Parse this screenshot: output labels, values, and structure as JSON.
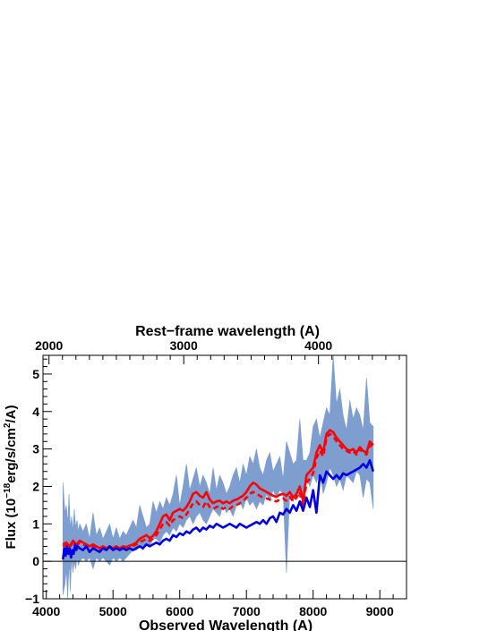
{
  "chart_data": {
    "type": "line",
    "xlabel": "Observed Wavelength (A)",
    "x2label": "Rest−frame wavelength (A)",
    "ylabel_parts": [
      "Flux (10",
      "−18",
      "erg/s/cm",
      "2",
      "/A)"
    ],
    "xlim": [
      3950,
      9400
    ],
    "ylim": [
      -1,
      5.5
    ],
    "x_ticks": [
      4000,
      5000,
      6000,
      7000,
      8000,
      9000
    ],
    "x_tick_labels": [
      "4000",
      "5000",
      "6000",
      "7000",
      "8000",
      "9000"
    ],
    "x2_ticks_rest": [
      2000,
      3000,
      4000
    ],
    "x2_tick_labels": [
      "2000",
      "3000",
      "4000"
    ],
    "x2_observed_per_rest": 2.02,
    "y_ticks": [
      -1,
      0,
      1,
      2,
      3,
      4,
      5
    ],
    "y_tick_labels": [
      "−1",
      "0",
      "1",
      "2",
      "3",
      "4",
      "5"
    ],
    "zero_line": 0,
    "grid": false,
    "legend": "none",
    "colors": {
      "observed": "#7f9ed0",
      "model_red": "#ff0000",
      "model_blue": "#0000e0",
      "axes": "#000000"
    },
    "series": [
      {
        "style": "fill",
        "color": "#7f9ed0",
        "x": [
          4250,
          4280,
          4300,
          4320,
          4340,
          4360,
          4380,
          4400,
          4420,
          4440,
          4460,
          4480,
          4500,
          4550,
          4600,
          4650,
          4700,
          4750,
          4800,
          4850,
          4900,
          4950,
          5000,
          5050,
          5100,
          5150,
          5200,
          5250,
          5300,
          5350,
          5400,
          5450,
          5500,
          5550,
          5600,
          5650,
          5700,
          5750,
          5800,
          5850,
          5900,
          5950,
          6000,
          6050,
          6100,
          6150,
          6200,
          6250,
          6300,
          6350,
          6400,
          6450,
          6500,
          6550,
          6600,
          6650,
          6700,
          6750,
          6800,
          6850,
          6900,
          6950,
          7000,
          7050,
          7100,
          7150,
          7200,
          7250,
          7300,
          7350,
          7400,
          7450,
          7500,
          7550,
          7600,
          7650,
          7700,
          7750,
          7800,
          7850,
          7900,
          7950,
          8000,
          8050,
          8100,
          8150,
          8200,
          8250,
          8300,
          8350,
          8400,
          8450,
          8500,
          8550,
          8600,
          8650,
          8700,
          8750,
          8800,
          8850,
          8900
        ],
        "upper": [
          2.1,
          1.3,
          1.5,
          1.0,
          1.8,
          0.9,
          1.2,
          0.8,
          1.4,
          0.9,
          1.1,
          0.8,
          1.0,
          0.8,
          1.0,
          0.6,
          1.3,
          0.7,
          0.9,
          0.6,
          0.8,
          1.0,
          0.6,
          0.9,
          0.6,
          0.8,
          0.7,
          0.9,
          1.1,
          0.9,
          1.5,
          1.2,
          0.9,
          1.0,
          1.6,
          1.3,
          1.6,
          1.4,
          1.7,
          1.5,
          1.8,
          2.3,
          1.5,
          2.0,
          2.6,
          1.9,
          2.2,
          2.5,
          2.0,
          2.3,
          2.1,
          1.8,
          2.5,
          1.9,
          2.3,
          2.1,
          1.8,
          2.0,
          2.3,
          2.5,
          2.1,
          2.6,
          2.3,
          2.8,
          2.6,
          3.0,
          2.5,
          2.3,
          2.7,
          2.9,
          2.4,
          2.6,
          2.8,
          2.2,
          3.2,
          2.9,
          2.6,
          2.7,
          3.8,
          2.7,
          2.7,
          2.9,
          3.6,
          3.8,
          3.3,
          3.7,
          4.1,
          3.9,
          5.5,
          4.2,
          4.6,
          3.9,
          3.5,
          4.3,
          3.8,
          4.1,
          3.9,
          3.5,
          4.9,
          3.7,
          3.6
        ],
        "lower": [
          -0.9,
          -0.6,
          -0.2,
          -1.0,
          0.0,
          -0.8,
          0.1,
          -0.3,
          0.0,
          -0.2,
          0.1,
          -0.1,
          0.0,
          0.1,
          0.0,
          0.1,
          -0.2,
          0.1,
          0.0,
          0.1,
          0.0,
          -0.1,
          0.1,
          0.0,
          0.1,
          0.0,
          0.1,
          0.2,
          0.3,
          0.3,
          0.4,
          0.3,
          0.5,
          0.4,
          0.6,
          0.6,
          0.5,
          0.7,
          0.8,
          0.7,
          0.9,
          0.8,
          1.0,
          0.9,
          1.1,
          1.2,
          1.0,
          1.2,
          1.3,
          1.1,
          1.0,
          1.2,
          1.4,
          1.3,
          1.2,
          1.5,
          1.3,
          1.4,
          1.2,
          1.5,
          1.6,
          1.4,
          1.7,
          1.5,
          1.6,
          1.4,
          1.6,
          1.5,
          1.8,
          1.6,
          1.9,
          1.7,
          1.9,
          1.8,
          -0.3,
          1.8,
          1.6,
          1.9,
          1.7,
          1.8,
          2.2,
          2.0,
          2.3,
          2.1,
          2.4,
          1.8,
          2.1,
          2.5,
          2.3,
          2.0,
          2.2,
          1.9,
          2.3,
          2.2,
          2.1,
          2.4,
          2.3,
          1.7,
          2.2,
          2.1,
          1.4
        ]
      },
      {
        "style": "solid",
        "color": "#ff0000",
        "x": [
          4250,
          4300,
          4350,
          4400,
          4450,
          4500,
          4550,
          4600,
          4650,
          4700,
          4750,
          4800,
          4850,
          4900,
          4950,
          5000,
          5050,
          5100,
          5150,
          5200,
          5250,
          5300,
          5350,
          5400,
          5450,
          5500,
          5550,
          5600,
          5650,
          5700,
          5750,
          5800,
          5850,
          5900,
          5950,
          6000,
          6050,
          6100,
          6150,
          6200,
          6250,
          6300,
          6350,
          6400,
          6450,
          6500,
          6550,
          6600,
          6650,
          6700,
          6750,
          6800,
          6850,
          6900,
          6950,
          7000,
          7050,
          7100,
          7150,
          7200,
          7250,
          7300,
          7350,
          7400,
          7450,
          7500,
          7550,
          7600,
          7650,
          7700,
          7750,
          7800,
          7850,
          7900,
          7950,
          8000,
          8050,
          8100,
          8150,
          8200,
          8250,
          8300,
          8350,
          8400,
          8450,
          8500,
          8550,
          8600,
          8650,
          8700,
          8750,
          8800,
          8850,
          8900
        ],
        "y": [
          0.45,
          0.5,
          0.4,
          0.55,
          0.45,
          0.55,
          0.5,
          0.45,
          0.4,
          0.45,
          0.4,
          0.35,
          0.4,
          0.35,
          0.4,
          0.35,
          0.4,
          0.35,
          0.4,
          0.38,
          0.42,
          0.45,
          0.5,
          0.6,
          0.65,
          0.7,
          0.62,
          0.68,
          0.8,
          1.0,
          1.2,
          1.25,
          1.1,
          1.3,
          1.35,
          1.4,
          1.35,
          1.45,
          1.6,
          1.8,
          1.85,
          1.75,
          1.7,
          1.85,
          1.65,
          1.55,
          1.6,
          1.62,
          1.55,
          1.6,
          1.55,
          1.62,
          1.65,
          1.7,
          1.75,
          1.85,
          2.0,
          2.1,
          2.05,
          1.95,
          1.9,
          1.85,
          1.8,
          1.75,
          1.72,
          1.78,
          1.8,
          1.75,
          1.85,
          1.7,
          1.8,
          2.0,
          1.6,
          2.3,
          2.4,
          2.5,
          2.9,
          3.1,
          2.9,
          3.4,
          3.5,
          3.45,
          3.3,
          3.2,
          3.1,
          3.0,
          2.95,
          3.0,
          2.9,
          3.05,
          2.95,
          2.9,
          3.2,
          3.1
        ]
      },
      {
        "style": "dashed",
        "color": "#ff0000",
        "x": [
          4250,
          4300,
          4350,
          4400,
          4450,
          4500,
          4550,
          4600,
          4650,
          4700,
          4750,
          4800,
          4850,
          4900,
          4950,
          5000,
          5050,
          5100,
          5150,
          5200,
          5250,
          5300,
          5350,
          5400,
          5450,
          5500,
          5550,
          5600,
          5650,
          5700,
          5750,
          5800,
          5850,
          5900,
          5950,
          6000,
          6050,
          6100,
          6150,
          6200,
          6250,
          6300,
          6350,
          6400,
          6450,
          6500,
          6550,
          6600,
          6650,
          6700,
          6750,
          6800,
          6850,
          6900,
          6950,
          7000,
          7050,
          7100,
          7150,
          7200,
          7250,
          7300,
          7350,
          7400,
          7450,
          7500,
          7550,
          7600,
          7650,
          7700,
          7750,
          7800,
          7850,
          7900,
          7950,
          8000,
          8050,
          8100,
          8150,
          8200,
          8250,
          8300,
          8350,
          8400,
          8450,
          8500,
          8550,
          8600,
          8650,
          8700,
          8750,
          8800,
          8850,
          8900
        ],
        "y": [
          0.4,
          0.45,
          0.38,
          0.5,
          0.42,
          0.5,
          0.45,
          0.42,
          0.38,
          0.42,
          0.38,
          0.33,
          0.37,
          0.33,
          0.37,
          0.33,
          0.37,
          0.33,
          0.37,
          0.35,
          0.38,
          0.41,
          0.45,
          0.52,
          0.55,
          0.6,
          0.55,
          0.6,
          0.7,
          0.85,
          1.0,
          1.05,
          0.95,
          1.1,
          1.15,
          1.2,
          1.15,
          1.25,
          1.4,
          1.55,
          1.6,
          1.5,
          1.45,
          1.6,
          1.45,
          1.4,
          1.45,
          1.48,
          1.4,
          1.45,
          1.4,
          1.48,
          1.5,
          1.55,
          1.6,
          1.7,
          1.8,
          1.85,
          1.8,
          1.75,
          1.7,
          1.68,
          1.65,
          1.62,
          1.6,
          1.65,
          1.68,
          1.62,
          1.72,
          1.6,
          1.7,
          1.85,
          1.5,
          2.1,
          2.2,
          2.35,
          2.75,
          2.95,
          2.8,
          3.3,
          3.4,
          3.35,
          3.2,
          3.1,
          3.0,
          2.95,
          2.9,
          2.95,
          2.85,
          3.0,
          2.9,
          2.85,
          3.1,
          3.05
        ]
      },
      {
        "style": "solid",
        "color": "#0000e0",
        "x": [
          4250,
          4270,
          4290,
          4310,
          4330,
          4350,
          4370,
          4390,
          4410,
          4430,
          4450,
          4470,
          4500,
          4550,
          4600,
          4650,
          4700,
          4750,
          4800,
          4850,
          4900,
          4950,
          5000,
          5050,
          5100,
          5150,
          5200,
          5250,
          5300,
          5350,
          5400,
          5450,
          5500,
          5550,
          5600,
          5650,
          5700,
          5750,
          5800,
          5850,
          5900,
          5950,
          6000,
          6050,
          6100,
          6150,
          6200,
          6250,
          6300,
          6350,
          6400,
          6450,
          6500,
          6550,
          6600,
          6650,
          6700,
          6750,
          6800,
          6850,
          6900,
          6950,
          7000,
          7050,
          7100,
          7150,
          7200,
          7250,
          7300,
          7350,
          7400,
          7450,
          7500,
          7550,
          7600,
          7650,
          7700,
          7750,
          7800,
          7850,
          7900,
          7950,
          8000,
          8050,
          8100,
          8150,
          8200,
          8250,
          8300,
          8350,
          8400,
          8450,
          8500,
          8550,
          8600,
          8650,
          8700,
          8750,
          8800,
          8850,
          8900
        ],
        "y": [
          0.05,
          0.35,
          0.15,
          0.4,
          0.2,
          0.35,
          0.1,
          0.3,
          0.2,
          0.45,
          0.3,
          0.4,
          0.35,
          0.3,
          0.4,
          0.25,
          0.35,
          0.3,
          0.25,
          0.35,
          0.3,
          0.4,
          0.3,
          0.35,
          0.3,
          0.35,
          0.3,
          0.35,
          0.3,
          0.35,
          0.4,
          0.35,
          0.45,
          0.4,
          0.45,
          0.5,
          0.45,
          0.55,
          0.6,
          0.55,
          0.7,
          0.65,
          0.75,
          0.7,
          0.8,
          0.75,
          0.85,
          0.9,
          0.8,
          0.9,
          0.85,
          0.95,
          0.9,
          1.0,
          0.95,
          0.9,
          0.95,
          1.0,
          0.95,
          0.9,
          1.0,
          0.95,
          0.9,
          0.95,
          1.0,
          1.05,
          1.0,
          1.1,
          1.0,
          1.15,
          1.2,
          1.05,
          1.3,
          1.25,
          1.4,
          1.3,
          1.5,
          1.35,
          1.6,
          1.35,
          1.7,
          1.45,
          1.9,
          1.3,
          2.3,
          2.1,
          2.4,
          2.3,
          2.2,
          2.3,
          2.2,
          2.35,
          2.3,
          2.35,
          2.4,
          2.45,
          2.5,
          2.6,
          2.5,
          2.7,
          2.4
        ]
      }
    ]
  }
}
